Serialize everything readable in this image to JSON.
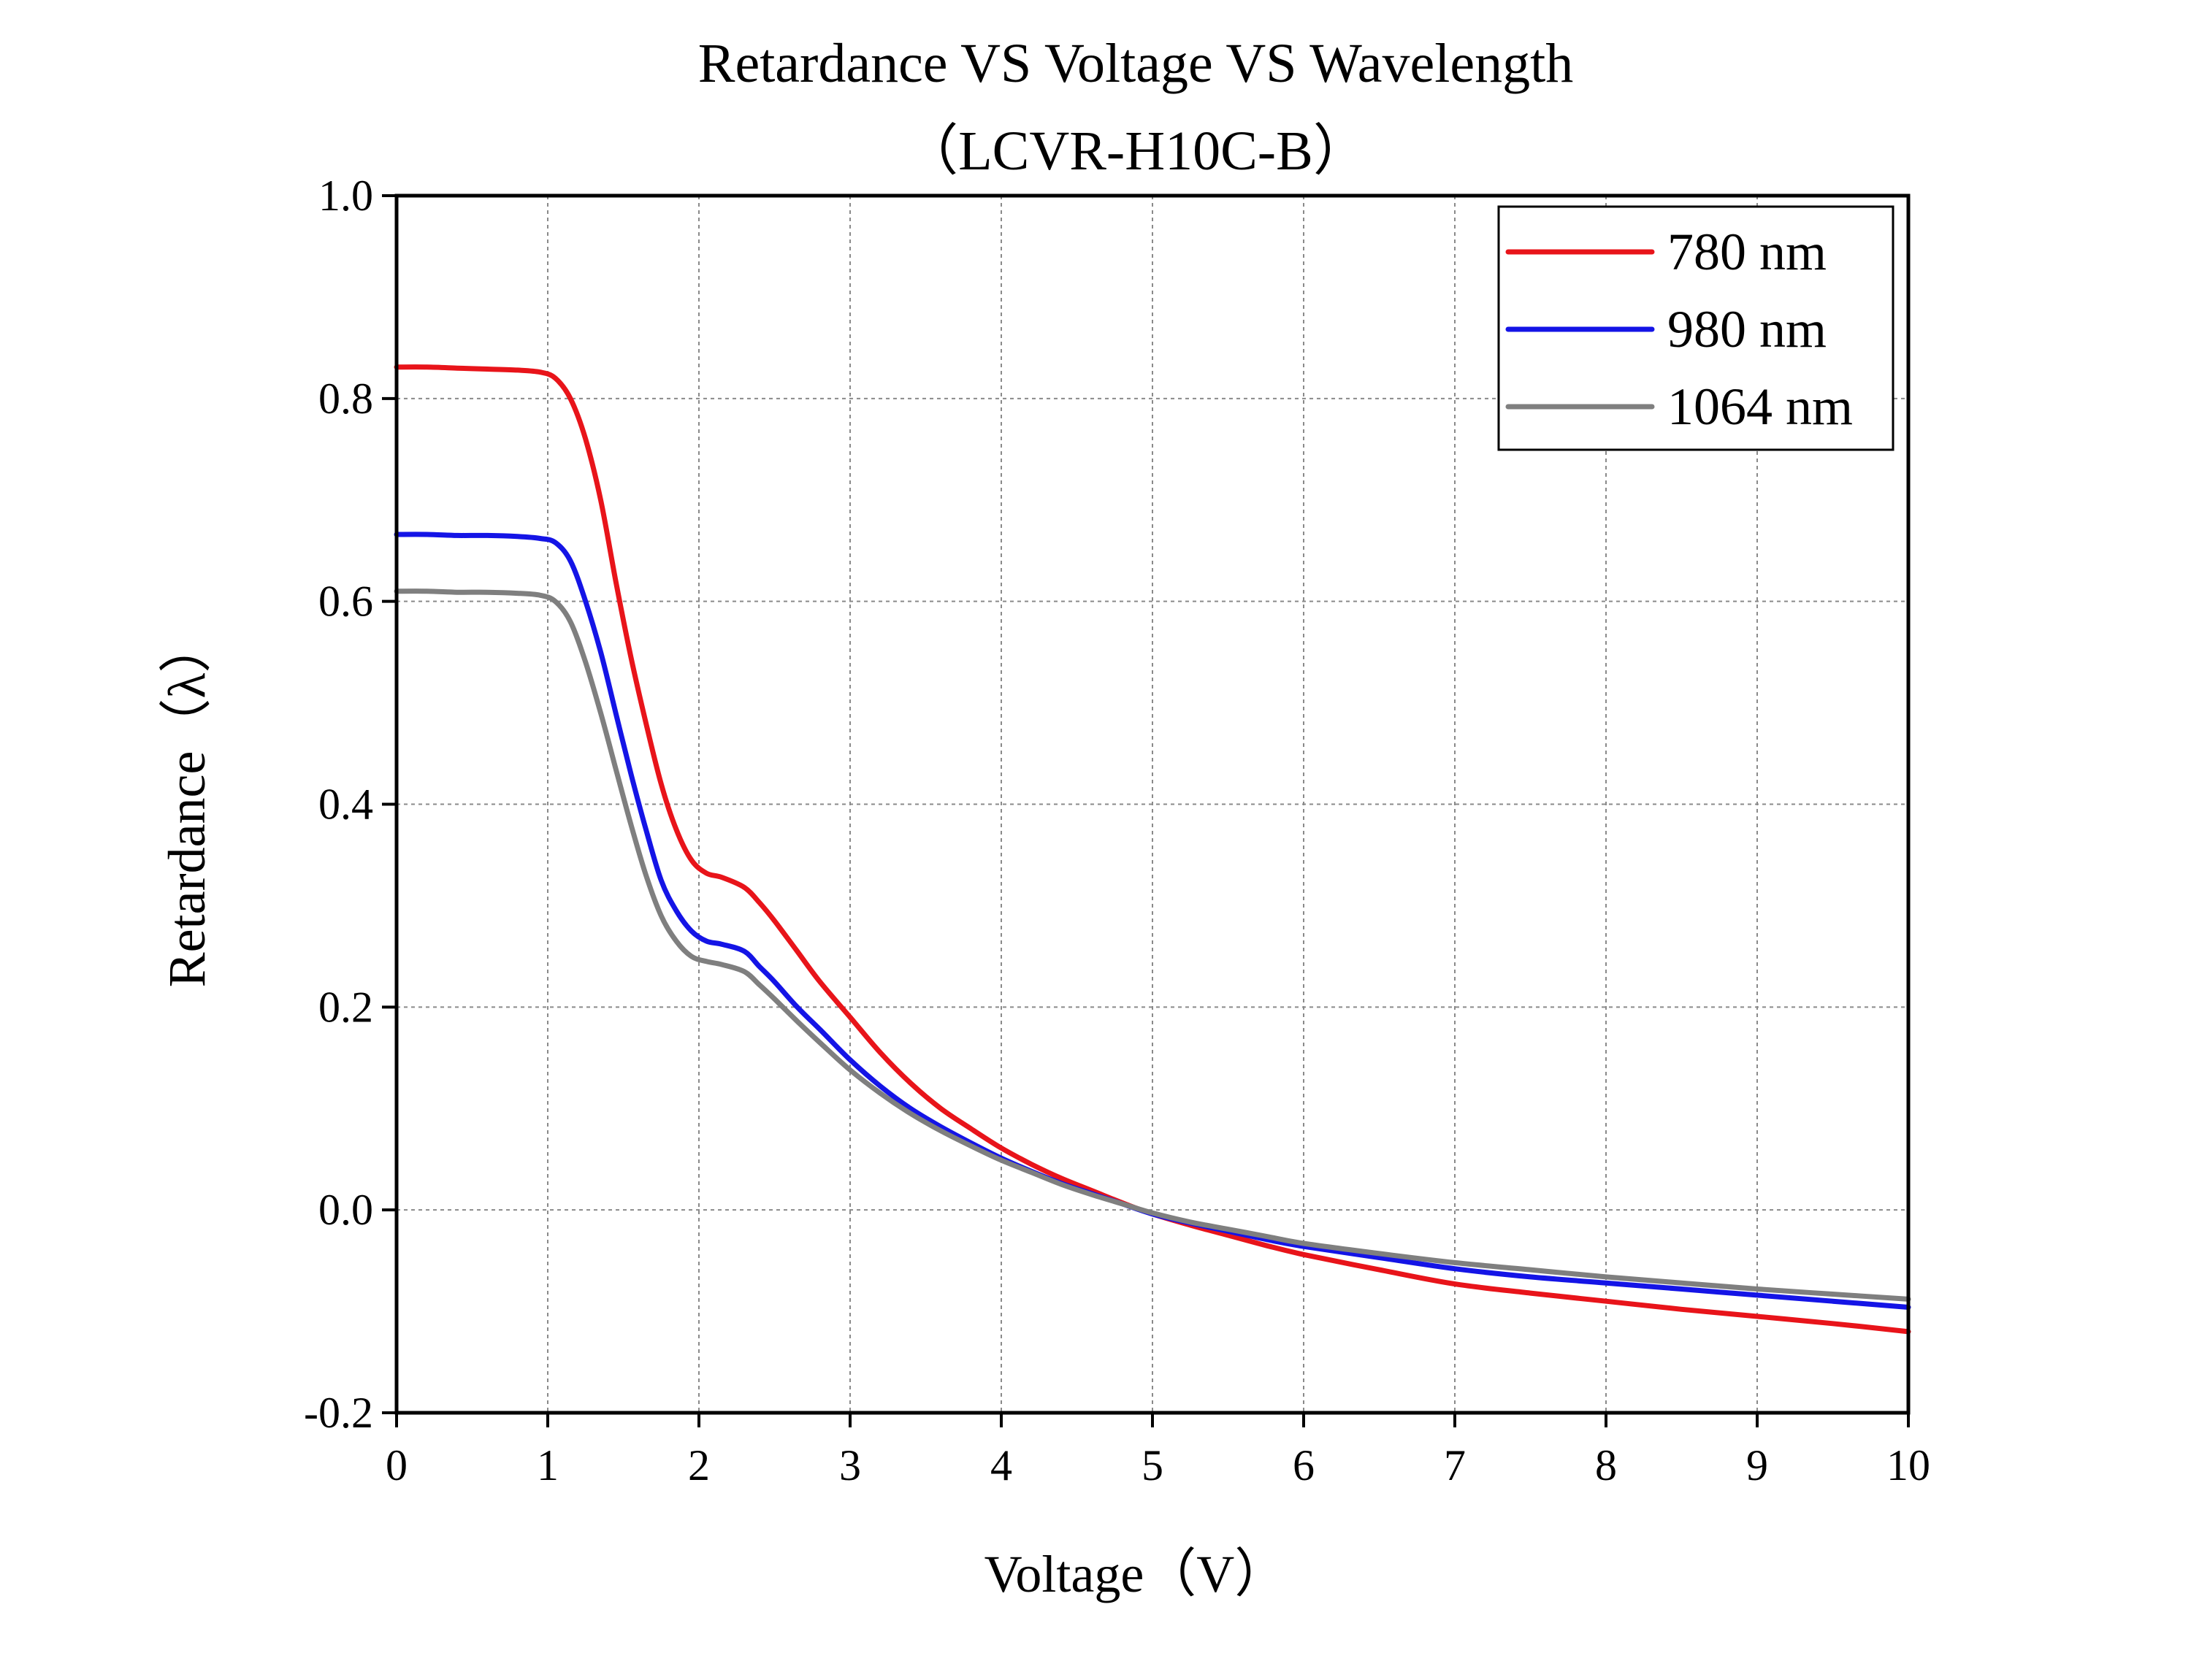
{
  "chart_data": {
    "type": "line",
    "title": "Retardance VS Voltage VS Wavelength",
    "subtitle": "（LCVR-H10C-B）",
    "xlabel": "Voltage（V）",
    "ylabel": "Retardance（λ）",
    "xlim": [
      0,
      10
    ],
    "ylim": [
      -0.2,
      1.0
    ],
    "xticks": [
      "0",
      "1",
      "2",
      "3",
      "4",
      "5",
      "6",
      "7",
      "8",
      "9",
      "10"
    ],
    "xtick_values": [
      0,
      1,
      2,
      3,
      4,
      5,
      6,
      7,
      8,
      9,
      10
    ],
    "yticks": [
      "-0.2",
      "0.0",
      "0.2",
      "0.4",
      "0.6",
      "0.8",
      "1.0"
    ],
    "ytick_values": [
      -0.2,
      0.0,
      0.2,
      0.4,
      0.6,
      0.8,
      1.0
    ],
    "grid": true,
    "legend_position": "top-right",
    "series": [
      {
        "name": "780 nm",
        "color": "#e8141a",
        "x": [
          0,
          0.2,
          0.4,
          0.6,
          0.8,
          0.95,
          1.05,
          1.15,
          1.25,
          1.35,
          1.45,
          1.55,
          1.65,
          1.75,
          1.85,
          1.95,
          2.05,
          2.15,
          2.3,
          2.4,
          2.5,
          2.65,
          2.8,
          3.0,
          3.2,
          3.4,
          3.6,
          3.8,
          4.0,
          4.2,
          4.4,
          4.6,
          4.8,
          5.0,
          5.25,
          5.5,
          5.75,
          6.0,
          6.5,
          7.0,
          7.5,
          8.0,
          8.5,
          9.0,
          9.5,
          10.0
        ],
        "y": [
          0.831,
          0.831,
          0.83,
          0.829,
          0.828,
          0.826,
          0.82,
          0.8,
          0.76,
          0.7,
          0.62,
          0.545,
          0.48,
          0.42,
          0.375,
          0.345,
          0.332,
          0.328,
          0.318,
          0.303,
          0.285,
          0.255,
          0.225,
          0.19,
          0.155,
          0.125,
          0.1,
          0.08,
          0.061,
          0.045,
          0.031,
          0.019,
          0.007,
          -0.004,
          -0.015,
          -0.025,
          -0.035,
          -0.044,
          -0.059,
          -0.073,
          -0.082,
          -0.09,
          -0.098,
          -0.105,
          -0.112,
          -0.12
        ]
      },
      {
        "name": "980 nm",
        "color": "#1414e6",
        "x": [
          0,
          0.2,
          0.4,
          0.6,
          0.8,
          0.95,
          1.05,
          1.15,
          1.25,
          1.35,
          1.45,
          1.55,
          1.65,
          1.75,
          1.85,
          1.95,
          2.05,
          2.15,
          2.3,
          2.4,
          2.5,
          2.65,
          2.8,
          3.0,
          3.2,
          3.4,
          3.6,
          3.8,
          4.0,
          4.2,
          4.4,
          4.6,
          4.8,
          5.0,
          5.25,
          5.5,
          5.75,
          6.0,
          6.5,
          7.0,
          7.5,
          8.0,
          8.5,
          9.0,
          9.5,
          10.0
        ],
        "y": [
          0.666,
          0.666,
          0.665,
          0.665,
          0.664,
          0.662,
          0.658,
          0.64,
          0.6,
          0.55,
          0.49,
          0.43,
          0.375,
          0.325,
          0.295,
          0.275,
          0.265,
          0.262,
          0.255,
          0.24,
          0.225,
          0.2,
          0.178,
          0.148,
          0.122,
          0.1,
          0.082,
          0.066,
          0.051,
          0.038,
          0.026,
          0.016,
          0.006,
          -0.004,
          -0.013,
          -0.021,
          -0.029,
          -0.036,
          -0.047,
          -0.058,
          -0.066,
          -0.072,
          -0.078,
          -0.084,
          -0.09,
          -0.096
        ]
      },
      {
        "name": "1064 nm",
        "color": "#7f7f7f",
        "x": [
          0,
          0.2,
          0.4,
          0.6,
          0.8,
          0.95,
          1.05,
          1.15,
          1.25,
          1.35,
          1.45,
          1.55,
          1.65,
          1.75,
          1.85,
          1.95,
          2.05,
          2.15,
          2.3,
          2.4,
          2.5,
          2.65,
          2.8,
          3.0,
          3.2,
          3.4,
          3.6,
          3.8,
          4.0,
          4.2,
          4.4,
          4.6,
          4.8,
          5.0,
          5.25,
          5.5,
          5.75,
          6.0,
          6.5,
          7.0,
          7.5,
          8.0,
          8.5,
          9.0,
          9.5,
          10.0
        ],
        "y": [
          0.61,
          0.61,
          0.609,
          0.609,
          0.608,
          0.606,
          0.6,
          0.58,
          0.54,
          0.49,
          0.435,
          0.38,
          0.33,
          0.29,
          0.265,
          0.25,
          0.245,
          0.242,
          0.235,
          0.222,
          0.208,
          0.186,
          0.165,
          0.138,
          0.115,
          0.095,
          0.078,
          0.063,
          0.049,
          0.037,
          0.025,
          0.015,
          0.006,
          -0.003,
          -0.012,
          -0.019,
          -0.026,
          -0.033,
          -0.043,
          -0.052,
          -0.059,
          -0.066,
          -0.072,
          -0.078,
          -0.083,
          -0.088
        ]
      }
    ]
  }
}
